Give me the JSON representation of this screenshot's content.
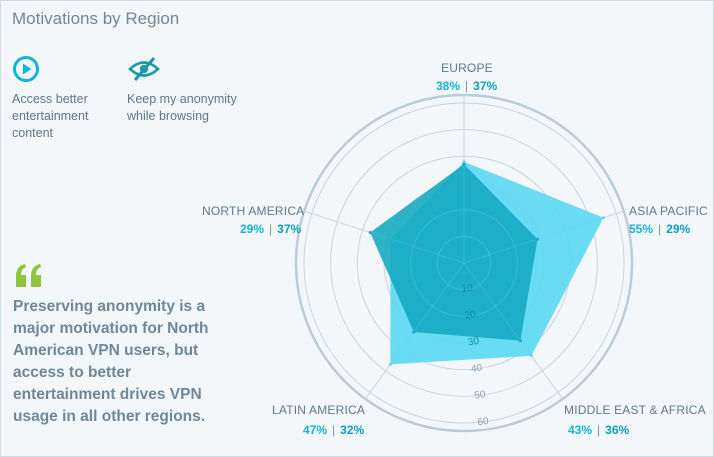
{
  "title": "Motivations by Region",
  "legend": [
    {
      "label": "Access better entertainment content",
      "icon": "play-circle-icon",
      "color": "#14b4d8"
    },
    {
      "label": "Keep my anonymity while browsing",
      "icon": "eye-slash-icon",
      "color": "#1a9aa8"
    }
  ],
  "quote": {
    "icon": "quote-mark-icon",
    "text": "Preserving anonymity is a major motivation for North American VPN users, but access to better entertainment drives VPN usage in all other regions.",
    "color": "#8cc63f"
  },
  "regions": [
    {
      "name": "EUROPE",
      "v1": "38%",
      "v2": "37%"
    },
    {
      "name": "ASIA PACIFIC",
      "v1": "55%",
      "v2": "29%"
    },
    {
      "name": "MIDDLE EAST & AFRICA",
      "v1": "43%",
      "v2": "36%"
    },
    {
      "name": "LATIN AMERICA",
      "v1": "47%",
      "v2": "32%"
    },
    {
      "name": "NORTH AMERICA",
      "v1": "29%",
      "v2": "37%"
    }
  ],
  "chart_data": {
    "type": "radar",
    "categories": [
      "EUROPE",
      "ASIA PACIFIC",
      "MIDDLE EAST & AFRICA",
      "LATIN AMERICA",
      "NORTH AMERICA"
    ],
    "series": [
      {
        "values": [
          38,
          55,
          43,
          47,
          29
        ],
        "color": "#5dd8f1"
      },
      {
        "values": [
          37,
          29,
          36,
          32,
          37
        ],
        "color": "#11a9c0"
      }
    ],
    "rlim": [
      0,
      60
    ],
    "ticks": [
      "10",
      "20",
      "30",
      "40",
      "50",
      "60"
    ],
    "tick_values": [
      10,
      20,
      30,
      40,
      50,
      60
    ],
    "grid": true
  }
}
